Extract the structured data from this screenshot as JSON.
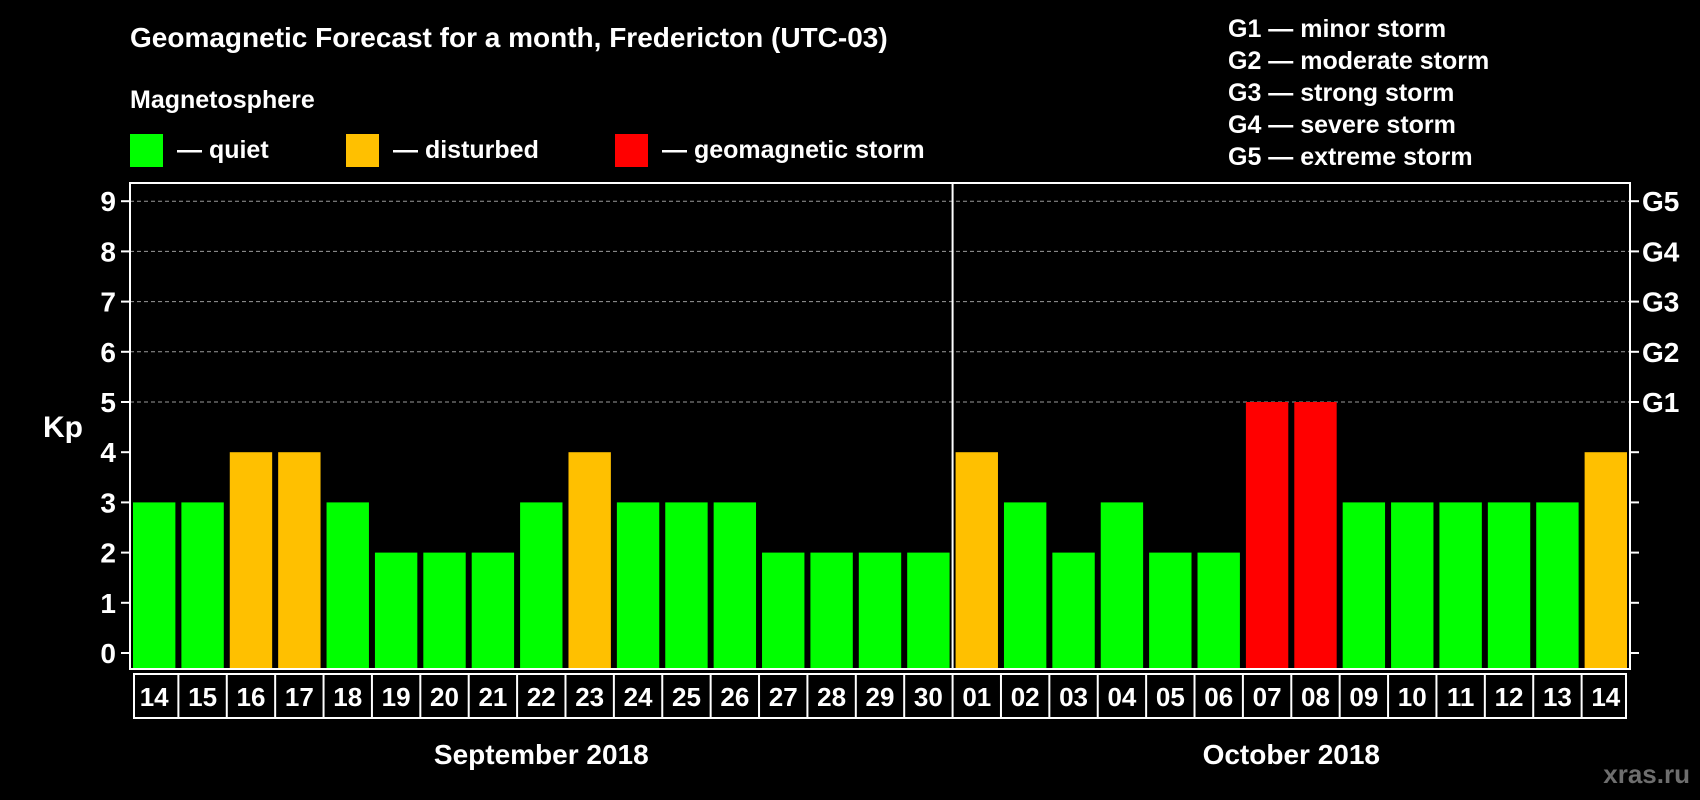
{
  "title": "Geomagnetic Forecast for a month, Fredericton (UTC-03)",
  "legend": {
    "heading": "Magnetosphere",
    "items": [
      {
        "label": "— quiet",
        "color": "#00ff00"
      },
      {
        "label": "— disturbed",
        "color": "#ffc000"
      },
      {
        "label": "— geomagnetic storm",
        "color": "#ff0000"
      }
    ]
  },
  "storm_scale": [
    "G1 — minor storm",
    "G2 — moderate storm",
    "G3 — strong storm",
    "G4 — severe storm",
    "G5 — extreme storm"
  ],
  "watermark": "xras.ru",
  "chart_data": {
    "type": "bar",
    "ylabel": "Kp",
    "ylim": [
      0,
      9
    ],
    "yticks": [
      "0",
      "1",
      "2",
      "3",
      "4",
      "5",
      "6",
      "7",
      "8",
      "9"
    ],
    "right_axis_labels": [
      {
        "kp": 5,
        "label": "G1"
      },
      {
        "kp": 6,
        "label": "G2"
      },
      {
        "kp": 7,
        "label": "G3"
      },
      {
        "kp": 8,
        "label": "G4"
      },
      {
        "kp": 9,
        "label": "G5"
      }
    ],
    "categories": [
      "14",
      "15",
      "16",
      "17",
      "18",
      "19",
      "20",
      "21",
      "22",
      "23",
      "24",
      "25",
      "26",
      "27",
      "28",
      "29",
      "30",
      "01",
      "02",
      "03",
      "04",
      "05",
      "06",
      "07",
      "08",
      "09",
      "10",
      "11",
      "12",
      "13",
      "14"
    ],
    "values": [
      3,
      3,
      4,
      4,
      3,
      2,
      2,
      2,
      3,
      4,
      3,
      3,
      3,
      2,
      2,
      2,
      2,
      4,
      3,
      2,
      3,
      2,
      2,
      5,
      5,
      3,
      3,
      3,
      3,
      3,
      4
    ],
    "months": [
      {
        "label": "September 2018",
        "start": 0,
        "count": 17
      },
      {
        "label": "October 2018",
        "start": 17,
        "count": 14
      }
    ],
    "level_colors": {
      "quiet": "#00ff00",
      "disturbed": "#ffc000",
      "storm": "#ff0000"
    },
    "grid": true
  }
}
